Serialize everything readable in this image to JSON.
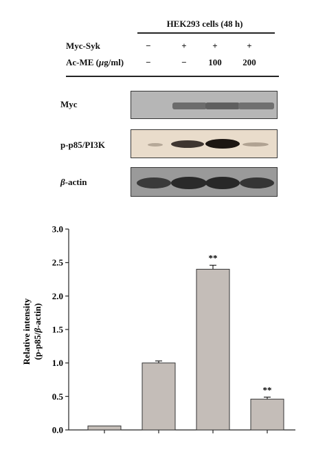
{
  "western": {
    "cell_header": "HEK293 cells (48 h)",
    "row_labels": {
      "myc_syk": "Myc-Syk",
      "acme_prefix": "Ac-ME (",
      "acme_mu": "μ",
      "acme_suffix": "g/ml)"
    },
    "myc_syk_values": [
      "−",
      "+",
      "+",
      "+"
    ],
    "acme_values": [
      "−",
      "−",
      "100",
      "200"
    ],
    "blots": {
      "myc": "Myc",
      "pp85": "p-p85/PI3K",
      "actin_beta": "β",
      "actin_suffix": "-actin"
    },
    "colors": {
      "myc_bg": "#b6b6b6",
      "pp85_bg": "#e9dccb",
      "actin_bg": "#9a9a9a"
    }
  },
  "chart_data": {
    "type": "bar",
    "categories": [
      "",
      "",
      "",
      ""
    ],
    "values": [
      0.06,
      1.0,
      2.4,
      0.46
    ],
    "errors": [
      0.0,
      0.03,
      0.06,
      0.03
    ],
    "significance": [
      "",
      "",
      "**",
      "**"
    ],
    "ylim": [
      0,
      3.0
    ],
    "yticks": [
      "0.0",
      "0.5",
      "1.0",
      "1.5",
      "2.0",
      "2.5",
      "3.0"
    ],
    "ylabel_line1": "Relative intensity",
    "ylabel_line2_prefix": "(p-p85/",
    "ylabel_line2_beta": "β",
    "ylabel_line2_suffix": "-actin)",
    "bar_color": "#c4bdb8"
  }
}
